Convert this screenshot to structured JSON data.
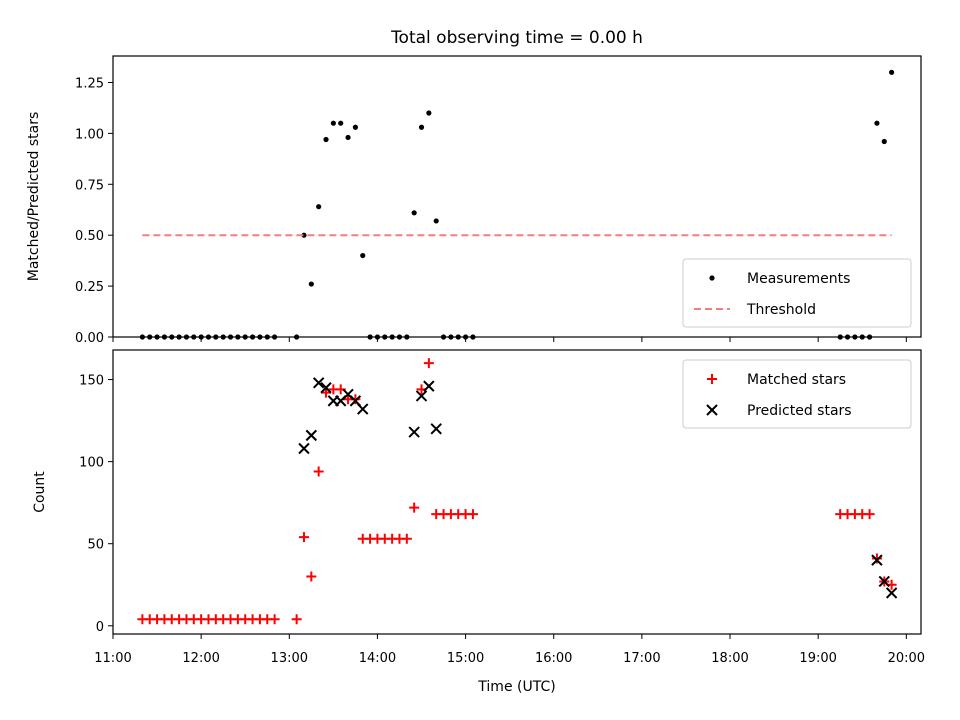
{
  "chart_data": {
    "title": "Total observing time = 0.00 h",
    "xlabel": "Time (UTC)",
    "x_ticks": [
      "11:00",
      "12:00",
      "13:00",
      "14:00",
      "15:00",
      "16:00",
      "17:00",
      "18:00",
      "19:00",
      "20:00"
    ],
    "xlim": [
      "11:00",
      "20:10"
    ],
    "panels": [
      {
        "type": "scatter",
        "ylabel": "Matched/Predicted stars",
        "ylim": [
          0.0,
          1.38
        ],
        "y_ticks": [
          "0.00",
          "0.25",
          "0.50",
          "0.75",
          "1.00",
          "1.25"
        ],
        "legend_location": "lower right",
        "series": [
          {
            "name": "Measurements",
            "marker": "dot",
            "color": "#000000",
            "points": [
              [
                "11:20",
                0
              ],
              [
                "11:25",
                0
              ],
              [
                "11:30",
                0
              ],
              [
                "11:35",
                0
              ],
              [
                "11:40",
                0
              ],
              [
                "11:45",
                0
              ],
              [
                "11:50",
                0
              ],
              [
                "11:55",
                0
              ],
              [
                "12:00",
                0
              ],
              [
                "12:05",
                0
              ],
              [
                "12:10",
                0
              ],
              [
                "12:15",
                0
              ],
              [
                "12:20",
                0
              ],
              [
                "12:25",
                0
              ],
              [
                "12:30",
                0
              ],
              [
                "12:35",
                0
              ],
              [
                "12:40",
                0
              ],
              [
                "12:45",
                0
              ],
              [
                "12:50",
                0
              ],
              [
                "13:05",
                0
              ],
              [
                "13:10",
                0.5
              ],
              [
                "13:15",
                0.26
              ],
              [
                "13:20",
                0.64
              ],
              [
                "13:25",
                0.97
              ],
              [
                "13:30",
                1.05
              ],
              [
                "13:35",
                1.05
              ],
              [
                "13:40",
                0.98
              ],
              [
                "13:45",
                1.03
              ],
              [
                "13:50",
                0.4
              ],
              [
                "13:55",
                0
              ],
              [
                "14:00",
                0
              ],
              [
                "14:05",
                0
              ],
              [
                "14:10",
                0
              ],
              [
                "14:15",
                0
              ],
              [
                "14:20",
                0
              ],
              [
                "14:25",
                0.61
              ],
              [
                "14:30",
                1.03
              ],
              [
                "14:35",
                1.1
              ],
              [
                "14:40",
                0.57
              ],
              [
                "14:45",
                0
              ],
              [
                "14:50",
                0
              ],
              [
                "14:55",
                0
              ],
              [
                "15:00",
                0
              ],
              [
                "15:05",
                0
              ],
              [
                "19:15",
                0
              ],
              [
                "19:20",
                0
              ],
              [
                "19:25",
                0
              ],
              [
                "19:30",
                0
              ],
              [
                "19:35",
                0
              ],
              [
                "19:40",
                1.05
              ],
              [
                "19:45",
                0.96
              ],
              [
                "19:50",
                1.3
              ]
            ]
          },
          {
            "name": "Threshold",
            "type": "line",
            "style": "dashed",
            "color": "#f08080",
            "points": [
              [
                "11:20",
                0.5
              ],
              [
                "19:50",
                0.5
              ]
            ]
          }
        ]
      },
      {
        "type": "scatter",
        "ylabel": "Count",
        "ylim": [
          -5,
          168
        ],
        "y_ticks": [
          "0",
          "50",
          "100",
          "150"
        ],
        "legend_location": "upper right",
        "series": [
          {
            "name": "Matched stars",
            "marker": "plus",
            "color": "#ff0000",
            "points": [
              [
                "11:20",
                4
              ],
              [
                "11:25",
                4
              ],
              [
                "11:30",
                4
              ],
              [
                "11:35",
                4
              ],
              [
                "11:40",
                4
              ],
              [
                "11:45",
                4
              ],
              [
                "11:50",
                4
              ],
              [
                "11:55",
                4
              ],
              [
                "12:00",
                4
              ],
              [
                "12:05",
                4
              ],
              [
                "12:10",
                4
              ],
              [
                "12:15",
                4
              ],
              [
                "12:20",
                4
              ],
              [
                "12:25",
                4
              ],
              [
                "12:30",
                4
              ],
              [
                "12:35",
                4
              ],
              [
                "12:40",
                4
              ],
              [
                "12:45",
                4
              ],
              [
                "12:50",
                4
              ],
              [
                "13:05",
                4
              ],
              [
                "13:10",
                54
              ],
              [
                "13:15",
                30
              ],
              [
                "13:20",
                94
              ],
              [
                "13:25",
                142
              ],
              [
                "13:30",
                144
              ],
              [
                "13:35",
                144
              ],
              [
                "13:40",
                138
              ],
              [
                "13:45",
                138
              ],
              [
                "13:50",
                53
              ],
              [
                "13:55",
                53
              ],
              [
                "14:00",
                53
              ],
              [
                "14:05",
                53
              ],
              [
                "14:10",
                53
              ],
              [
                "14:15",
                53
              ],
              [
                "14:20",
                53
              ],
              [
                "14:25",
                72
              ],
              [
                "14:30",
                144
              ],
              [
                "14:35",
                160
              ],
              [
                "14:40",
                68
              ],
              [
                "14:45",
                68
              ],
              [
                "14:50",
                68
              ],
              [
                "14:55",
                68
              ],
              [
                "15:00",
                68
              ],
              [
                "15:05",
                68
              ],
              [
                "19:15",
                68
              ],
              [
                "19:20",
                68
              ],
              [
                "19:25",
                68
              ],
              [
                "19:30",
                68
              ],
              [
                "19:35",
                68
              ],
              [
                "19:40",
                41
              ],
              [
                "19:45",
                27
              ],
              [
                "19:50",
                25
              ]
            ]
          },
          {
            "name": "Predicted stars",
            "marker": "x",
            "color": "#000000",
            "points": [
              [
                "13:10",
                108
              ],
              [
                "13:15",
                116
              ],
              [
                "13:20",
                148
              ],
              [
                "13:25",
                145
              ],
              [
                "13:30",
                137
              ],
              [
                "13:35",
                137
              ],
              [
                "13:40",
                141
              ],
              [
                "13:45",
                137
              ],
              [
                "13:50",
                132
              ],
              [
                "14:25",
                118
              ],
              [
                "14:30",
                140
              ],
              [
                "14:35",
                146
              ],
              [
                "14:40",
                120
              ],
              [
                "19:40",
                40
              ],
              [
                "19:45",
                27
              ],
              [
                "19:50",
                20
              ]
            ]
          }
        ]
      }
    ]
  }
}
